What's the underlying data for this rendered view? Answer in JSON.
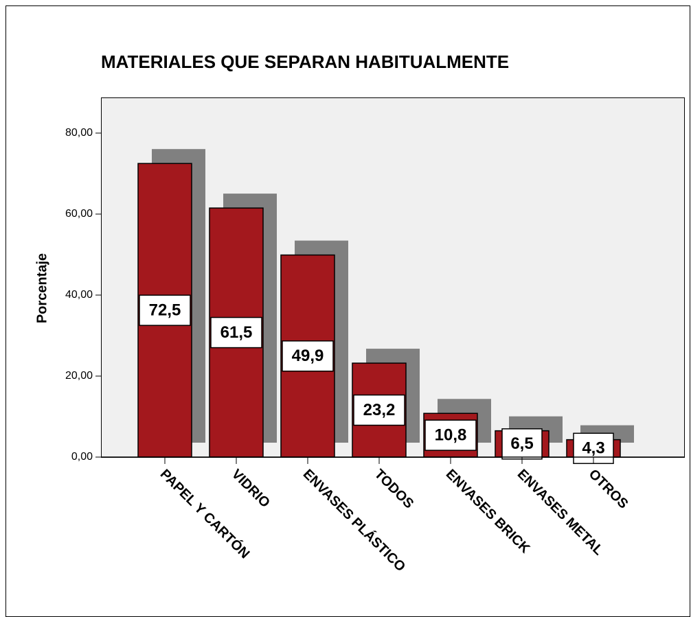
{
  "chart_data": {
    "type": "bar",
    "title": "MATERIALES QUE SEPARAN HABITUALMENTE",
    "y_label": "Porcentaje",
    "categories": [
      "PAPEL Y CARTÓN",
      "VIDRIO",
      "ENVASES PLÁSTICO",
      "TODOS",
      "ENVASES BRICK",
      "ENVASES METAL",
      "OTROS"
    ],
    "values": [
      72.5,
      61.5,
      49.9,
      23.2,
      10.8,
      6.5,
      4.3
    ],
    "value_labels": [
      "72,5",
      "61,5",
      "49,9",
      "23,2",
      "10,8",
      "6,5",
      "4,3"
    ],
    "color": "#a3181d",
    "shadow_color": "#808080",
    "ylim": [
      0,
      88.8
    ],
    "yticks": [
      {
        "value": 0,
        "label": "0,00"
      },
      {
        "value": 20,
        "label": "20,00"
      },
      {
        "value": 40,
        "label": "40,00"
      },
      {
        "value": 60,
        "label": "60,00"
      },
      {
        "value": 80,
        "label": "80,00"
      }
    ]
  }
}
